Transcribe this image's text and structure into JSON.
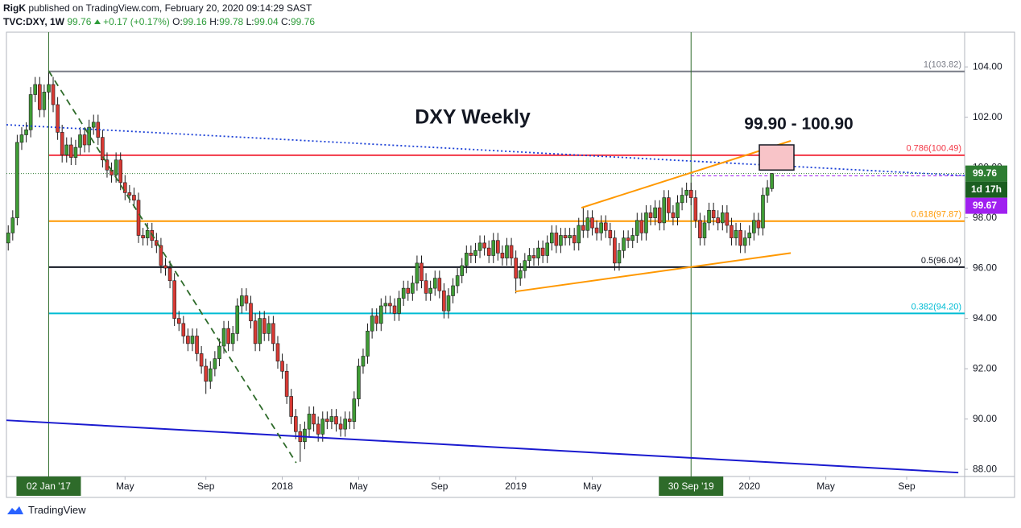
{
  "header": {
    "author": "RigK",
    "published": "published on TradingView.com, February 20, 2020 09:14:29 SAST",
    "symbol": "TVC:DXY, 1W",
    "last": "99.76",
    "change": "+0.17 (+0.17%)",
    "ohlc": [
      {
        "key": "O:",
        "value": "99.16"
      },
      {
        "key": "H:",
        "value": "99.78"
      },
      {
        "key": "L:",
        "value": "99.04"
      },
      {
        "key": "C:",
        "value": "99.76"
      }
    ]
  },
  "footer": "TradingView",
  "chart_data": {
    "type": "candlestick",
    "title": "DXY Weekly",
    "annotation": "99.90 - 100.90",
    "up_color": "#3f9c35",
    "down_color": "#d83a34",
    "xlim": [
      -0.4,
      212.9
    ],
    "ylim": [
      87.78,
      105.38
    ],
    "yticks": [
      {
        "value": 88,
        "label": "88.00"
      },
      {
        "value": 90,
        "label": "90.00"
      },
      {
        "value": 92,
        "label": "92.00"
      },
      {
        "value": 94,
        "label": "94.00"
      },
      {
        "value": 96,
        "label": "96.00"
      },
      {
        "value": 98,
        "label": "98.00"
      },
      {
        "value": 100,
        "label": "100.00"
      },
      {
        "value": 102,
        "label": "102.00"
      },
      {
        "value": 104,
        "label": "104.00"
      }
    ],
    "xticks": [
      {
        "value": 9,
        "label": "02 Jan '17"
      },
      {
        "value": 26,
        "label": "May"
      },
      {
        "value": 44,
        "label": "Sep"
      },
      {
        "value": 61,
        "label": "2018"
      },
      {
        "value": 78,
        "label": "May"
      },
      {
        "value": 96,
        "label": "Sep"
      },
      {
        "value": 113,
        "label": "2019"
      },
      {
        "value": 130,
        "label": "May"
      },
      {
        "value": 152,
        "label": "30 Sep '19"
      },
      {
        "value": 165,
        "label": "2020"
      },
      {
        "value": 182,
        "label": "May"
      },
      {
        "value": 200,
        "label": "Sep"
      }
    ],
    "grid": false,
    "vlines": [
      9,
      152
    ],
    "vline_color": "#2e6b2a",
    "fib_start": 9,
    "fib_levels": [
      {
        "value": 103.82,
        "label": "1(103.82)",
        "color": "#787b86"
      },
      {
        "value": 100.49,
        "label": "0.786(100.49)",
        "color": "#f23645"
      },
      {
        "value": 97.87,
        "label": "0.618(97.87)",
        "color": "#ff9800"
      },
      {
        "value": 96.04,
        "label": "0.5(96.04)",
        "color": "#131722"
      },
      {
        "value": 94.2,
        "label": "0.382(94.20)",
        "color": "#00bcd4"
      }
    ],
    "last_price": {
      "value": 99.76,
      "label": "99.76",
      "countdown": "1d 17h",
      "color": "#2e7d32"
    },
    "alert_line": {
      "value": 99.67,
      "label": "99.67",
      "color": "#a020f0",
      "start": 152
    },
    "drawings": [
      {
        "type": "line",
        "color": "#1a3fd6",
        "style": "dotted",
        "points": [
          [
            -0.4,
            101.7
          ],
          [
            212.9,
            99.68
          ]
        ]
      },
      {
        "type": "line",
        "color": "#1a1acf",
        "style": "solid",
        "points": [
          [
            -0.4,
            89.95
          ],
          [
            211.5,
            87.87
          ]
        ]
      },
      {
        "type": "line",
        "color": "#2e6b2a",
        "style": "dashed",
        "points": [
          [
            9,
            103.84
          ],
          [
            64.1,
            88.26
          ]
        ]
      },
      {
        "type": "line",
        "color": "#ff9800",
        "style": "solid",
        "points": [
          [
            127.6,
            98.4
          ],
          [
            174.2,
            101.06
          ]
        ]
      },
      {
        "type": "line",
        "color": "#ff9800",
        "style": "solid",
        "points": [
          [
            112.9,
            95.07
          ],
          [
            174.2,
            96.6
          ]
        ]
      },
      {
        "type": "rect",
        "color": "#f8c4c8",
        "style": "solid",
        "points": [
          [
            167.2,
            100.9
          ],
          [
            174.9,
            99.9
          ]
        ]
      }
    ],
    "candles": [
      [
        97.0,
        97.7,
        96.7,
        97.4
      ],
      [
        97.4,
        98.3,
        97.1,
        98.0
      ],
      [
        98.0,
        101.3,
        97.7,
        101.0
      ],
      [
        101.0,
        101.6,
        100.7,
        101.3
      ],
      [
        101.3,
        101.8,
        101.0,
        101.5
      ],
      [
        101.5,
        103.2,
        101.2,
        102.9
      ],
      [
        102.9,
        103.6,
        102.6,
        103.3
      ],
      [
        103.3,
        103.6,
        102.0,
        102.3
      ],
      [
        102.3,
        103.3,
        102.0,
        103.0
      ],
      [
        103.0,
        103.82,
        102.7,
        103.3
      ],
      [
        103.3,
        103.6,
        102.2,
        102.5
      ],
      [
        102.5,
        102.8,
        101.1,
        101.4
      ],
      [
        101.4,
        101.7,
        100.2,
        100.5
      ],
      [
        100.5,
        101.2,
        100.2,
        100.9
      ],
      [
        100.9,
        101.2,
        100.1,
        100.4
      ],
      [
        100.4,
        101.1,
        100.1,
        100.8
      ],
      [
        100.8,
        101.6,
        100.5,
        101.3
      ],
      [
        101.3,
        101.6,
        100.6,
        100.9
      ],
      [
        100.9,
        101.9,
        100.6,
        101.6
      ],
      [
        101.6,
        102.1,
        101.3,
        101.8
      ],
      [
        101.8,
        102.1,
        100.9,
        101.2
      ],
      [
        101.2,
        101.5,
        100.0,
        100.3
      ],
      [
        100.3,
        100.6,
        99.6,
        99.9
      ],
      [
        99.9,
        100.2,
        99.4,
        99.7
      ],
      [
        99.7,
        100.6,
        99.4,
        100.3
      ],
      [
        100.3,
        100.6,
        99.1,
        99.4
      ],
      [
        99.4,
        99.7,
        98.7,
        99.0
      ],
      [
        99.0,
        99.3,
        98.6,
        98.9
      ],
      [
        98.9,
        99.2,
        98.4,
        98.7
      ],
      [
        98.7,
        99.0,
        97.0,
        97.3
      ],
      [
        97.3,
        97.6,
        96.9,
        97.2
      ],
      [
        97.2,
        97.8,
        96.9,
        97.5
      ],
      [
        97.5,
        97.8,
        96.8,
        97.1
      ],
      [
        97.1,
        97.4,
        96.6,
        96.9
      ],
      [
        96.9,
        97.2,
        95.8,
        96.1
      ],
      [
        96.1,
        96.4,
        95.7,
        96.0
      ],
      [
        96.0,
        96.3,
        95.2,
        95.5
      ],
      [
        95.5,
        95.8,
        93.7,
        94.0
      ],
      [
        94.0,
        94.3,
        93.5,
        93.8
      ],
      [
        93.8,
        94.1,
        93.0,
        93.3
      ],
      [
        93.3,
        93.6,
        92.7,
        93.0
      ],
      [
        93.0,
        93.6,
        92.7,
        93.3
      ],
      [
        93.3,
        93.6,
        92.3,
        92.6
      ],
      [
        92.6,
        92.9,
        91.8,
        92.1
      ],
      [
        92.1,
        92.4,
        91.0,
        91.5
      ],
      [
        91.5,
        92.3,
        91.2,
        92.0
      ],
      [
        92.0,
        92.7,
        91.7,
        92.4
      ],
      [
        92.4,
        93.2,
        92.1,
        92.9
      ],
      [
        92.9,
        93.9,
        92.6,
        93.6
      ],
      [
        93.6,
        93.9,
        92.7,
        93.0
      ],
      [
        93.0,
        93.7,
        92.7,
        93.4
      ],
      [
        93.4,
        94.8,
        93.1,
        94.5
      ],
      [
        94.5,
        95.2,
        94.2,
        94.9
      ],
      [
        94.9,
        95.2,
        94.3,
        94.6
      ],
      [
        94.6,
        94.9,
        93.6,
        93.9
      ],
      [
        93.9,
        94.2,
        92.7,
        93.0
      ],
      [
        93.0,
        94.3,
        92.7,
        94.0
      ],
      [
        94.0,
        94.3,
        93.1,
        93.4
      ],
      [
        93.4,
        94.1,
        93.1,
        93.8
      ],
      [
        93.8,
        94.1,
        92.7,
        93.0
      ],
      [
        93.0,
        93.3,
        92.0,
        92.3
      ],
      [
        92.3,
        92.6,
        91.6,
        91.9
      ],
      [
        91.9,
        92.2,
        90.6,
        90.9
      ],
      [
        90.9,
        91.2,
        89.8,
        90.1
      ],
      [
        90.1,
        90.4,
        89.2,
        89.5
      ],
      [
        89.5,
        89.8,
        88.3,
        89.1
      ],
      [
        89.1,
        89.9,
        88.8,
        89.6
      ],
      [
        89.6,
        90.5,
        89.3,
        90.2
      ],
      [
        90.2,
        90.5,
        89.5,
        89.8
      ],
      [
        89.8,
        90.1,
        89.1,
        89.4
      ],
      [
        89.4,
        90.3,
        89.1,
        90.0
      ],
      [
        90.0,
        90.3,
        89.6,
        89.9
      ],
      [
        89.9,
        90.4,
        89.6,
        90.1
      ],
      [
        90.1,
        90.4,
        89.5,
        89.8
      ],
      [
        89.8,
        90.1,
        89.3,
        89.6
      ],
      [
        89.6,
        90.3,
        89.3,
        90.0
      ],
      [
        90.0,
        90.3,
        89.6,
        89.9
      ],
      [
        89.9,
        91.1,
        89.6,
        90.8
      ],
      [
        90.8,
        92.4,
        90.5,
        92.1
      ],
      [
        92.1,
        92.8,
        91.8,
        92.5
      ],
      [
        92.5,
        93.8,
        92.2,
        93.5
      ],
      [
        93.5,
        94.4,
        93.2,
        94.1
      ],
      [
        94.1,
        94.4,
        93.5,
        93.8
      ],
      [
        93.8,
        94.8,
        93.5,
        94.5
      ],
      [
        94.5,
        94.9,
        94.2,
        94.6
      ],
      [
        94.6,
        94.9,
        94.2,
        94.5
      ],
      [
        94.5,
        94.8,
        93.9,
        94.2
      ],
      [
        94.2,
        95.1,
        93.9,
        94.8
      ],
      [
        94.8,
        95.5,
        94.5,
        95.2
      ],
      [
        95.2,
        95.5,
        94.7,
        95.0
      ],
      [
        95.0,
        95.7,
        94.7,
        95.4
      ],
      [
        95.4,
        96.5,
        95.1,
        96.2
      ],
      [
        96.2,
        96.5,
        95.2,
        95.5
      ],
      [
        95.5,
        95.8,
        94.7,
        95.0
      ],
      [
        95.0,
        95.5,
        94.7,
        95.2
      ],
      [
        95.2,
        95.9,
        94.9,
        95.6
      ],
      [
        95.6,
        95.9,
        94.8,
        95.1
      ],
      [
        95.1,
        95.4,
        94.0,
        94.3
      ],
      [
        94.3,
        95.2,
        94.0,
        94.9
      ],
      [
        94.9,
        95.6,
        94.6,
        95.3
      ],
      [
        95.3,
        96.0,
        95.0,
        95.7
      ],
      [
        95.7,
        96.4,
        95.4,
        96.1
      ],
      [
        96.1,
        96.9,
        95.8,
        96.6
      ],
      [
        96.6,
        96.9,
        96.2,
        96.5
      ],
      [
        96.5,
        97.0,
        96.2,
        96.7
      ],
      [
        96.7,
        97.3,
        96.4,
        97.0
      ],
      [
        97.0,
        97.3,
        96.5,
        96.8
      ],
      [
        96.8,
        97.1,
        96.2,
        96.5
      ],
      [
        96.5,
        97.4,
        96.2,
        97.1
      ],
      [
        97.1,
        97.4,
        96.3,
        96.6
      ],
      [
        96.6,
        96.9,
        96.1,
        96.4
      ],
      [
        96.4,
        97.2,
        96.1,
        96.9
      ],
      [
        96.9,
        97.2,
        96.1,
        96.4
      ],
      [
        96.4,
        96.7,
        95.0,
        95.6
      ],
      [
        95.6,
        96.2,
        95.3,
        95.9
      ],
      [
        95.9,
        96.6,
        95.6,
        96.3
      ],
      [
        96.3,
        96.8,
        96.0,
        96.5
      ],
      [
        96.5,
        96.8,
        96.1,
        96.4
      ],
      [
        96.4,
        97.1,
        96.1,
        96.8
      ],
      [
        96.8,
        97.1,
        96.2,
        96.5
      ],
      [
        96.5,
        97.3,
        96.2,
        97.0
      ],
      [
        97.0,
        97.7,
        96.7,
        97.4
      ],
      [
        97.4,
        97.7,
        96.6,
        96.9
      ],
      [
        96.9,
        97.6,
        96.6,
        97.3
      ],
      [
        97.3,
        97.6,
        96.9,
        97.2
      ],
      [
        97.2,
        97.6,
        96.9,
        97.3
      ],
      [
        97.3,
        97.6,
        96.7,
        97.0
      ],
      [
        97.0,
        98.0,
        96.7,
        97.7
      ],
      [
        97.7,
        98.4,
        97.2,
        97.5
      ],
      [
        97.5,
        98.3,
        97.2,
        98.0
      ],
      [
        98.0,
        98.3,
        97.3,
        97.6
      ],
      [
        97.6,
        97.9,
        97.1,
        97.4
      ],
      [
        97.4,
        98.1,
        97.1,
        97.8
      ],
      [
        97.8,
        98.1,
        97.2,
        97.5
      ],
      [
        97.5,
        97.8,
        96.9,
        97.2
      ],
      [
        97.2,
        97.5,
        95.9,
        96.2
      ],
      [
        96.2,
        97.0,
        95.9,
        96.7
      ],
      [
        96.7,
        97.5,
        96.4,
        97.2
      ],
      [
        97.2,
        97.5,
        96.8,
        97.1
      ],
      [
        97.1,
        97.6,
        96.8,
        97.3
      ],
      [
        97.3,
        98.2,
        97.0,
        97.9
      ],
      [
        97.9,
        98.2,
        97.1,
        97.4
      ],
      [
        97.4,
        98.5,
        97.1,
        98.2
      ],
      [
        98.2,
        98.5,
        97.7,
        98.0
      ],
      [
        98.0,
        98.7,
        97.7,
        98.4
      ],
      [
        98.4,
        98.7,
        97.5,
        97.8
      ],
      [
        97.8,
        99.1,
        97.5,
        98.8
      ],
      [
        98.8,
        99.1,
        97.9,
        98.2
      ],
      [
        98.2,
        98.5,
        97.7,
        98.0
      ],
      [
        98.0,
        98.9,
        97.7,
        98.6
      ],
      [
        98.6,
        99.2,
        98.3,
        98.9
      ],
      [
        98.9,
        99.4,
        98.6,
        99.1
      ],
      [
        99.1,
        99.4,
        98.5,
        98.8
      ],
      [
        98.8,
        99.1,
        97.6,
        97.9
      ],
      [
        97.9,
        98.2,
        96.9,
        97.2
      ],
      [
        97.2,
        98.1,
        96.9,
        97.8
      ],
      [
        97.8,
        98.6,
        97.5,
        98.3
      ],
      [
        98.3,
        98.6,
        97.7,
        98.0
      ],
      [
        98.0,
        98.3,
        97.5,
        97.8
      ],
      [
        97.8,
        98.5,
        97.5,
        98.2
      ],
      [
        98.2,
        98.5,
        97.4,
        97.7
      ],
      [
        97.7,
        98.0,
        96.9,
        97.2
      ],
      [
        97.2,
        97.8,
        96.9,
        97.5
      ],
      [
        97.5,
        97.8,
        96.6,
        96.9
      ],
      [
        96.9,
        97.5,
        96.6,
        97.2
      ],
      [
        97.2,
        97.7,
        96.9,
        97.4
      ],
      [
        97.4,
        98.2,
        97.1,
        97.9
      ],
      [
        97.9,
        98.2,
        97.3,
        97.6
      ],
      [
        97.6,
        99.2,
        97.3,
        98.9
      ],
      [
        98.9,
        99.5,
        98.6,
        99.2
      ],
      [
        99.16,
        99.78,
        99.04,
        99.76
      ]
    ]
  }
}
